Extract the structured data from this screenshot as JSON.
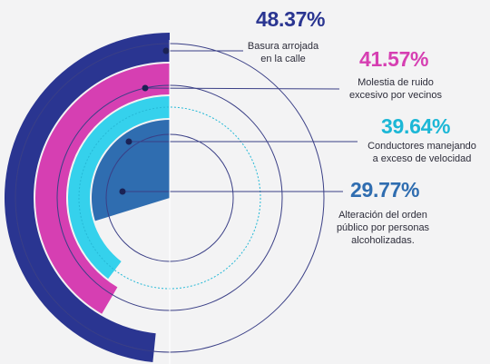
{
  "chart_data": {
    "type": "radial-bar",
    "max_value": 100,
    "series": [
      {
        "name": "Basura arrojada en la calle",
        "value": 48.37,
        "label": "48.37%",
        "description_lines": [
          "Basura arrojada",
          "en la calle"
        ],
        "color": "#2a3591"
      },
      {
        "name": "Molestia de ruido excesivo por vecinos",
        "value": 41.57,
        "label": "41.57%",
        "description_lines": [
          "Molestia de ruido",
          "excesivo por vecinos"
        ],
        "color": "#d63fb2"
      },
      {
        "name": "Conductores manejando a exceso de velocidad",
        "value": 39.64,
        "label": "39.64%",
        "description_lines": [
          "Conductores manejando",
          "a exceso de velocidad"
        ],
        "color": "#35d1ec"
      },
      {
        "name": "Alteración del orden público por personas alcoholizadas.",
        "value": 29.77,
        "label": "29.77%",
        "description_lines": [
          "Alteración del orden",
          "público por personas",
          "alcoholizadas."
        ],
        "color": "#2f6db0"
      }
    ],
    "label_colors": [
      "#2a3591",
      "#d63fb2",
      "#1cb7d6",
      "#2f6db0"
    ]
  }
}
